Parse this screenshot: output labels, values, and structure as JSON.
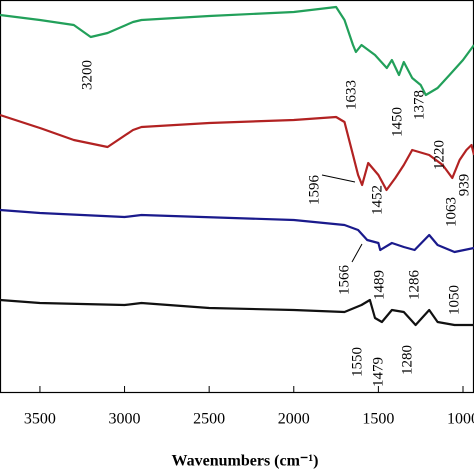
{
  "chart_data": {
    "type": "line",
    "x_label": "Wavenumbers (cm⁻¹)",
    "xlim": [
      3736,
      935
    ],
    "xticks": [
      3500,
      3000,
      2500,
      2000,
      1500,
      1000
    ],
    "ylim": [
      0,
      392
    ],
    "series": [
      {
        "color": "#22a05a",
        "x": [
          3736,
          3500,
          3300,
          3200,
          3100,
          2950,
          2900,
          2500,
          2000,
          1750,
          1700,
          1650,
          1633,
          1600,
          1520,
          1450,
          1420,
          1378,
          1350,
          1300,
          1250,
          1220,
          1150,
          1080,
          1000,
          935
        ],
        "values": [
          377,
          372,
          367,
          355,
          359,
          370,
          372,
          376,
          380,
          385,
          372,
          347,
          340,
          347,
          337,
          324,
          332,
          317,
          330,
          314,
          307,
          297,
          304,
          317,
          332,
          347
        ]
      },
      {
        "color": "#b22222",
        "x": [
          3736,
          3500,
          3300,
          3100,
          2950,
          2900,
          2500,
          2000,
          1750,
          1700,
          1650,
          1620,
          1596,
          1560,
          1500,
          1452,
          1400,
          1350,
          1300,
          1200,
          1120,
          1063,
          1020,
          980,
          950,
          935
        ],
        "values": [
          277,
          264,
          252,
          245,
          262,
          265,
          269,
          272,
          275,
          270,
          237,
          217,
          207,
          229,
          217,
          202,
          214,
          227,
          242,
          237,
          227,
          214,
          232,
          242,
          247,
          237
        ]
      },
      {
        "color": "#1a1a8c",
        "x": [
          3736,
          3500,
          3000,
          2900,
          2000,
          1700,
          1620,
          1566,
          1500,
          1489,
          1420,
          1350,
          1286,
          1200,
          1150,
          1050,
          935
        ],
        "values": [
          182,
          179,
          175,
          177,
          172,
          167,
          162,
          152,
          149,
          142,
          149,
          145,
          142,
          157,
          147,
          140,
          144
        ]
      },
      {
        "color": "#111111",
        "x": [
          3736,
          3500,
          3000,
          2900,
          2500,
          2000,
          1700,
          1600,
          1550,
          1520,
          1479,
          1420,
          1350,
          1280,
          1200,
          1150,
          1050,
          935
        ],
        "values": [
          92,
          89,
          87,
          89,
          84,
          82,
          80,
          87,
          92,
          74,
          70,
          82,
          80,
          67,
          82,
          70,
          67,
          67
        ]
      }
    ],
    "annotations": [
      "3200",
      "1633",
      "1450",
      "1378",
      "1220",
      "939",
      "1596",
      "1452",
      "1063",
      "1566",
      "1489",
      "1286",
      "1050",
      "1550",
      "1479",
      "1280"
    ]
  }
}
